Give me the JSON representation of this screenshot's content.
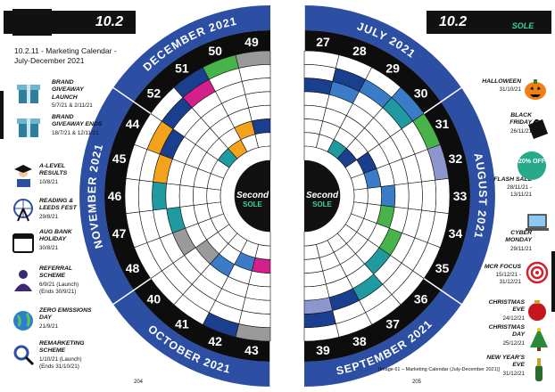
{
  "left_page": {
    "section_number": "10.2",
    "title": "10.2.11 - Marketing Calendar - July-December 2021",
    "page_number": "204",
    "events": [
      {
        "title": "BRAND GIVEAWAY LAUNCH",
        "dates": "5/7/21 & 2/11/21",
        "icon": "gift-icon"
      },
      {
        "title": "BRAND GIVEAWAY ENDS",
        "dates": "18/7/21 & 12/11/21",
        "icon": "gift-icon"
      },
      {
        "title": "A-LEVEL RESULTS",
        "dates": "10/8/21",
        "icon": "graduate-icon"
      },
      {
        "title": "READING & LEEDS FEST",
        "dates": "29/8/21",
        "icon": "ferris-wheel-icon"
      },
      {
        "title": "AUG BANK HOLIDAY",
        "dates": "30/8/21",
        "icon": "calendar-icon"
      },
      {
        "title": "REFERRAL SCHEME",
        "dates": "6/9/21 (Launch) (Ends 30/9/21)",
        "icon": "person-icon"
      },
      {
        "title": "ZERO EMISSIONS DAY",
        "dates": "21/9/21",
        "icon": "globe-icon"
      },
      {
        "title": "REMARKETING SCHEME",
        "dates": "1/10/21 (Launch) (Ends 31/10/21)",
        "icon": "magnifier-icon"
      }
    ],
    "months": [
      {
        "name": "DECEMBER 2021",
        "weeks": [
          "49",
          "50",
          "51",
          "52"
        ]
      },
      {
        "name": "NOVEMBER 2021",
        "weeks": [
          "44",
          "45",
          "46",
          "47",
          "48"
        ]
      },
      {
        "name": "OCTOBER 2021",
        "weeks": [
          "40",
          "41",
          "42",
          "43"
        ]
      }
    ]
  },
  "right_page": {
    "section_number": "10.2",
    "page_number": "205",
    "caption": "[Image 61 – Marketing Calendar (July-December 2021)]",
    "events": [
      {
        "title": "HALLOWEEN",
        "dates": "31/10/21",
        "icon": "pumpkin-icon"
      },
      {
        "title": "BLACK FRIDAY",
        "dates": "26/11/21",
        "icon": "shopping-bag-icon"
      },
      {
        "title": "FLASH SALE",
        "dates": "28/11/21 - 13/11/21",
        "icon": "flash-sale-badge",
        "badge": "20% OFF"
      },
      {
        "title": "CYBER MONDAY",
        "dates": "29/11/21",
        "icon": "laptop-icon"
      },
      {
        "title": "MCR FOCUS",
        "dates": "15/12/21 - 31/12/21",
        "icon": "target-icon"
      },
      {
        "title": "CHRISTMAS EVE",
        "dates": "24/12/21",
        "icon": "bauble-icon"
      },
      {
        "title": "CHRISTMAS DAY",
        "dates": "25/12/21",
        "icon": "tree-icon"
      },
      {
        "title": "NEW YEAR'S EVE",
        "dates": "31/12/21",
        "icon": "champagne-icon"
      }
    ],
    "months": [
      {
        "name": "JULY 2021",
        "weeks": [
          "27",
          "28",
          "29",
          "30"
        ]
      },
      {
        "name": "AUGUST 2021",
        "weeks": [
          "31",
          "32",
          "33",
          "34",
          "35"
        ]
      },
      {
        "name": "SEPTEMBER 2021",
        "weeks": [
          "36",
          "37",
          "38",
          "39"
        ]
      }
    ]
  },
  "brand": {
    "logo_top": "Second",
    "logo_bottom": "SOLE"
  },
  "colors": {
    "ring_blue": "#2c4fa3",
    "week_black": "#0d0d0d",
    "teal": "#1e9aa0",
    "dark_blue": "#1b3f8f",
    "green": "#47b34a",
    "orange": "#f3a21c",
    "grey": "#9a9a9a",
    "magenta": "#d51f8b",
    "lavender": "#8d96cf",
    "sky": "#3a7cc8"
  }
}
